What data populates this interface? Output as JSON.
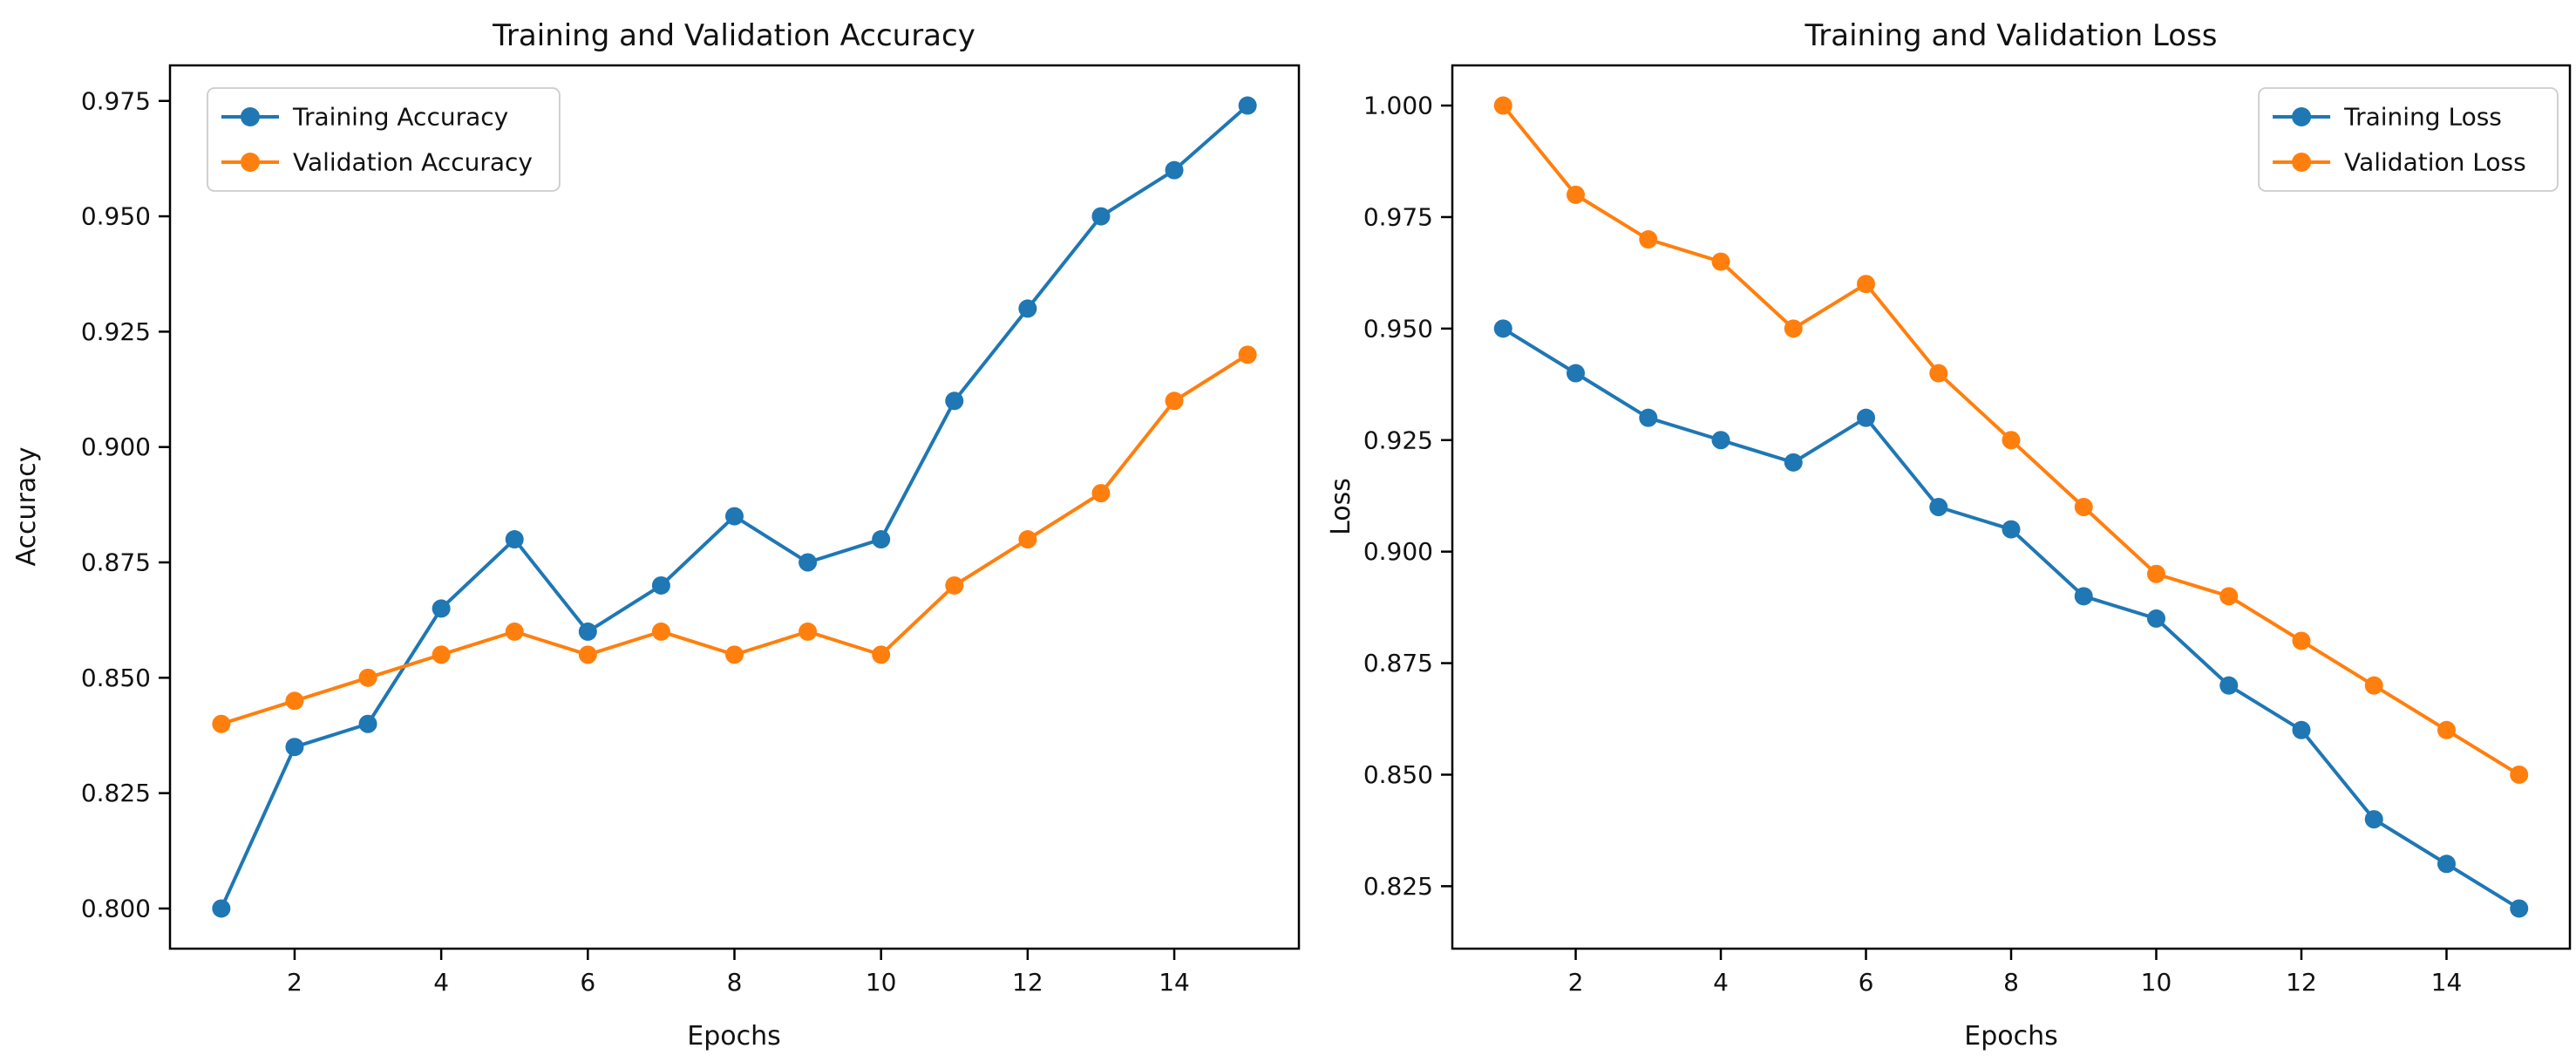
{
  "figure": {
    "background": "#ffffff",
    "text_color": "#111111",
    "spine_color": "#000000",
    "legend_border_color": "#cccccc"
  },
  "chart_data": [
    {
      "type": "line",
      "title": "Training and Validation Accuracy",
      "xlabel": "Epochs",
      "ylabel": "Accuracy",
      "x": [
        1,
        2,
        3,
        4,
        5,
        6,
        7,
        8,
        9,
        10,
        11,
        12,
        13,
        14,
        15
      ],
      "xticks": [
        2,
        4,
        6,
        8,
        10,
        12,
        14
      ],
      "xlim": [
        0.3,
        15.7
      ],
      "ylim": [
        0.7913,
        0.9827
      ],
      "yticks": [
        0.8,
        0.825,
        0.85,
        0.875,
        0.9,
        0.925,
        0.95,
        0.975
      ],
      "ytick_decimals": 3,
      "grid": false,
      "legend_position": "upper-left",
      "series": [
        {
          "name": "Training Accuracy",
          "color": "#1f77b4",
          "marker": "circle",
          "values": [
            0.8,
            0.835,
            0.84,
            0.865,
            0.88,
            0.86,
            0.87,
            0.885,
            0.875,
            0.88,
            0.91,
            0.93,
            0.95,
            0.96,
            0.974
          ]
        },
        {
          "name": "Validation Accuracy",
          "color": "#ff7f0e",
          "marker": "circle",
          "values": [
            0.84,
            0.845,
            0.85,
            0.855,
            0.86,
            0.855,
            0.86,
            0.855,
            0.86,
            0.855,
            0.87,
            0.88,
            0.89,
            0.91,
            0.92
          ]
        }
      ]
    },
    {
      "type": "line",
      "title": "Training and Validation Loss",
      "xlabel": "Epochs",
      "ylabel": "Loss",
      "x": [
        1,
        2,
        3,
        4,
        5,
        6,
        7,
        8,
        9,
        10,
        11,
        12,
        13,
        14,
        15
      ],
      "xticks": [
        2,
        4,
        6,
        8,
        10,
        12,
        14
      ],
      "xlim": [
        0.3,
        15.7
      ],
      "ylim": [
        0.811,
        1.009
      ],
      "yticks": [
        0.825,
        0.85,
        0.875,
        0.9,
        0.925,
        0.95,
        0.975,
        1.0
      ],
      "ytick_decimals": 3,
      "grid": false,
      "legend_position": "upper-right",
      "series": [
        {
          "name": "Training Loss",
          "color": "#1f77b4",
          "marker": "circle",
          "values": [
            0.95,
            0.94,
            0.93,
            0.925,
            0.92,
            0.93,
            0.91,
            0.905,
            0.89,
            0.885,
            0.87,
            0.86,
            0.84,
            0.83,
            0.82
          ]
        },
        {
          "name": "Validation Loss",
          "color": "#ff7f0e",
          "marker": "circle",
          "values": [
            1.0,
            0.98,
            0.97,
            0.965,
            0.95,
            0.96,
            0.94,
            0.925,
            0.91,
            0.895,
            0.89,
            0.88,
            0.87,
            0.86,
            0.85
          ]
        }
      ]
    }
  ]
}
